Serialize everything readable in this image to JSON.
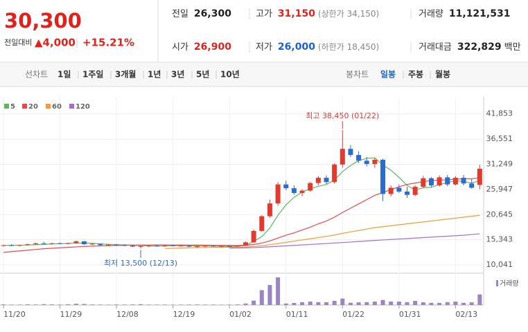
{
  "header": {
    "price": "30,300",
    "change_label": "전일대비",
    "change": "▲4,000",
    "change_pct": "+15.21%",
    "stats": [
      {
        "label": "전일",
        "value": "26,300"
      },
      {
        "label": "고가",
        "value": "31,150",
        "extra": "(상한가 34,150)"
      },
      {
        "label": "거래량",
        "value": "11,121,531"
      },
      {
        "label": "시가",
        "value": "26,900"
      },
      {
        "label": "저가",
        "value": "26,000",
        "extra": "(하한가 18,450)"
      },
      {
        "label": "거래대금",
        "value": "322,829",
        "extra": "백만"
      }
    ]
  },
  "tabs": {
    "line_label": "선차트",
    "periods": [
      "1일",
      "1주일",
      "3개월",
      "1년",
      "3년",
      "5년",
      "10년"
    ],
    "candle_label": "봉차트",
    "candles": [
      "일봉",
      "주봉",
      "월봉"
    ]
  },
  "chart_data": {
    "type": "candlestick",
    "up_color": "#e23b2e",
    "down_color": "#2c6ccf",
    "grid": true,
    "categories": [
      "11/20",
      null,
      null,
      null,
      null,
      null,
      null,
      "11/29",
      null,
      null,
      null,
      null,
      null,
      null,
      "12/08",
      null,
      null,
      null,
      null,
      null,
      null,
      "12/19",
      null,
      null,
      null,
      null,
      null,
      null,
      "01/02",
      null,
      null,
      null,
      null,
      null,
      null,
      "01/11",
      null,
      null,
      null,
      null,
      null,
      null,
      "01/22",
      null,
      null,
      null,
      null,
      null,
      null,
      "01/31",
      null,
      null,
      null,
      null,
      null,
      null,
      "02/13",
      null,
      null,
      null
    ],
    "open": [
      14100,
      14200,
      14100,
      14250,
      14400,
      14600,
      14500,
      14600,
      14500,
      14650,
      15000,
      14400,
      14500,
      14200,
      14300,
      14200,
      14100,
      13900,
      14000,
      14100,
      14000,
      14150,
      14050,
      14100,
      13900,
      13950,
      14050,
      13900,
      14000,
      13950,
      14100,
      14800,
      17200,
      20300,
      23000,
      27000,
      26200,
      25200,
      25700,
      27300,
      28400,
      27500,
      31200,
      34500,
      33200,
      32000,
      31300,
      32200,
      25000,
      26300,
      25500,
      24800,
      26500,
      28300,
      26800,
      28500,
      27000,
      28400,
      27200,
      26900
    ],
    "high": [
      14300,
      14400,
      14300,
      14500,
      14700,
      14900,
      14700,
      14800,
      14700,
      15200,
      15100,
      14600,
      14600,
      14400,
      14500,
      14400,
      14300,
      14100,
      14200,
      14300,
      14200,
      14300,
      14250,
      14300,
      14100,
      14150,
      14200,
      14100,
      14150,
      14200,
      15000,
      17500,
      20500,
      23800,
      27500,
      27800,
      26800,
      26000,
      27500,
      28800,
      28900,
      31500,
      38450,
      35300,
      34000,
      32800,
      32500,
      32400,
      26800,
      27000,
      26500,
      26800,
      28800,
      28600,
      28900,
      29000,
      28700,
      29000,
      28200,
      31150
    ],
    "low": [
      13900,
      14000,
      13950,
      14100,
      14300,
      14400,
      14300,
      14400,
      14350,
      14500,
      14300,
      14200,
      14100,
      14000,
      14100,
      14000,
      13800,
      13500,
      13800,
      13900,
      13850,
      13950,
      13900,
      13800,
      13700,
      13800,
      13850,
      13750,
      13800,
      13850,
      14000,
      14700,
      17000,
      20000,
      22500,
      25800,
      24800,
      24500,
      25500,
      26800,
      27000,
      27200,
      30500,
      32800,
      31500,
      30800,
      30500,
      23500,
      24500,
      25200,
      24200,
      24500,
      26200,
      26400,
      26500,
      26600,
      26800,
      26800,
      26100,
      26000
    ],
    "close": [
      14200,
      14100,
      14250,
      14400,
      14600,
      14500,
      14600,
      14500,
      14650,
      15000,
      14400,
      14500,
      14200,
      14300,
      14200,
      14100,
      13900,
      14000,
      14100,
      14000,
      14150,
      14050,
      14100,
      13900,
      13950,
      14050,
      13900,
      14000,
      13950,
      14100,
      14800,
      17200,
      20300,
      23000,
      27000,
      26200,
      25200,
      25700,
      27300,
      28400,
      27500,
      31200,
      34500,
      33200,
      32000,
      31300,
      32200,
      25000,
      26300,
      25500,
      24800,
      26500,
      28300,
      26800,
      28500,
      27000,
      28400,
      27200,
      26300,
      30300
    ],
    "ma": [
      {
        "name": "5",
        "color": "#5cb85c",
        "values": [
          14150,
          14180,
          14200,
          14230,
          14310,
          14370,
          14470,
          14520,
          14570,
          14650,
          14640,
          14610,
          14470,
          14380,
          14320,
          14260,
          14200,
          14100,
          14060,
          14020,
          14030,
          14080,
          14080,
          14060,
          14050,
          14010,
          13990,
          13960,
          13970,
          14000,
          14150,
          15000,
          16000,
          17800,
          20500,
          22700,
          24300,
          25400,
          26100,
          26600,
          27000,
          27900,
          29700,
          31000,
          32000,
          32500,
          32600,
          31100,
          30000,
          28500,
          26800,
          25800,
          26300,
          26400,
          27000,
          27400,
          27800,
          27600,
          27300,
          27800
        ]
      },
      {
        "name": "20",
        "color": "#e8474c",
        "values": [
          12700,
          12850,
          13000,
          13150,
          13300,
          13450,
          13550,
          13650,
          13750,
          13850,
          13950,
          14000,
          14050,
          14100,
          14150,
          14200,
          14220,
          14240,
          14250,
          14260,
          14260,
          14250,
          14240,
          14230,
          14220,
          14200,
          14180,
          14160,
          14150,
          14140,
          14200,
          14350,
          14650,
          15100,
          15700,
          16300,
          16800,
          17400,
          18000,
          18700,
          19300,
          20100,
          21100,
          22000,
          22900,
          23800,
          24700,
          25300,
          25900,
          26500,
          27000,
          27300,
          27600,
          27800,
          27900,
          28000,
          28100,
          28200,
          28200,
          28400
        ]
      },
      {
        "name": "60",
        "color": "#f29b38",
        "values": [
          null,
          null,
          null,
          null,
          null,
          null,
          null,
          null,
          null,
          null,
          null,
          null,
          null,
          null,
          null,
          null,
          null,
          null,
          null,
          null,
          13500,
          13550,
          13600,
          13650,
          13700,
          13720,
          13740,
          13760,
          13780,
          13800,
          13830,
          13950,
          14100,
          14300,
          14550,
          14800,
          15050,
          15300,
          15550,
          15800,
          16050,
          16350,
          16700,
          17000,
          17300,
          17600,
          17900,
          18100,
          18300,
          18500,
          18700,
          18900,
          19100,
          19300,
          19500,
          19700,
          19900,
          20100,
          20300,
          20500
        ]
      },
      {
        "name": "120",
        "color": "#a86cd1",
        "values": [
          null,
          null,
          null,
          null,
          null,
          null,
          null,
          null,
          null,
          null,
          null,
          null,
          null,
          null,
          null,
          null,
          null,
          null,
          null,
          null,
          null,
          null,
          null,
          null,
          null,
          null,
          null,
          null,
          13600,
          13620,
          13650,
          13700,
          13780,
          13870,
          13960,
          14060,
          14160,
          14260,
          14360,
          14460,
          14560,
          14660,
          14760,
          14870,
          14980,
          15090,
          15200,
          15300,
          15400,
          15500,
          15600,
          15700,
          15800,
          15900,
          16000,
          16100,
          16200,
          16300,
          16450,
          16600
        ]
      }
    ],
    "volume": {
      "name": "거래량",
      "color": "#9b86c4",
      "values": [
        600000,
        450000,
        500000,
        700000,
        550000,
        900000,
        650000,
        500000,
        800000,
        1300000,
        1100000,
        600000,
        500000,
        450000,
        550000,
        500000,
        600000,
        900000,
        500000,
        450000,
        500000,
        400000,
        450000,
        500000,
        550000,
        450000,
        500000,
        400000,
        450000,
        600000,
        1600000,
        4600000,
        15600000,
        21000000,
        29000000,
        1600000,
        2200000,
        2900000,
        3600000,
        3000000,
        2900000,
        4400000,
        6800000,
        2400000,
        2800000,
        3000000,
        3600000,
        5300000,
        3700000,
        3600000,
        3000000,
        4300000,
        2900000,
        2300000,
        2200000,
        3000000,
        3600000,
        2300000,
        2800000,
        11121531
      ]
    },
    "annotations": [
      "최고 38,450 (01/22)",
      "최저 13,500 (12/13)"
    ],
    "ylim": [
      8300,
      44000
    ],
    "yticks": [
      {
        "value": 41853,
        "label": "41,853"
      },
      {
        "value": 36551,
        "label": "36,551"
      },
      {
        "value": 31249,
        "label": "31,249"
      },
      {
        "value": 25947,
        "label": "25,947"
      },
      {
        "value": 20645,
        "label": "20,645"
      },
      {
        "value": 15343,
        "label": "15,343"
      },
      {
        "value": 10041,
        "label": "10,041"
      }
    ]
  }
}
